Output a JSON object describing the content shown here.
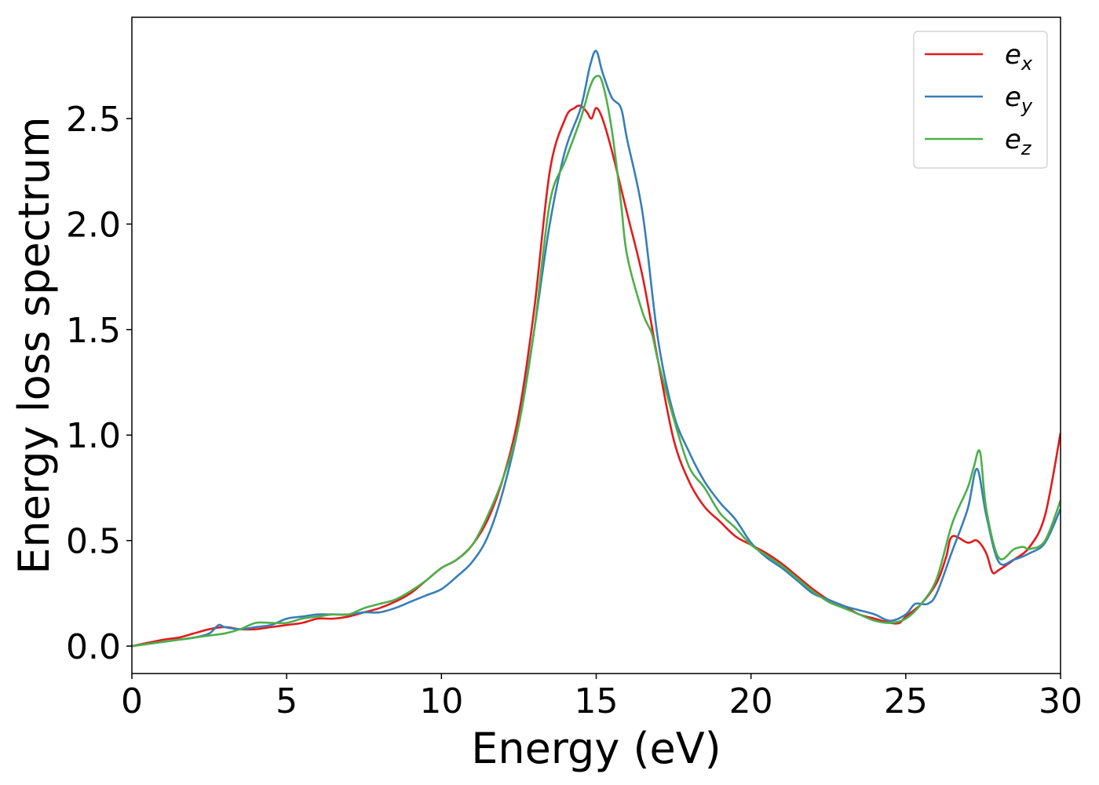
{
  "chart_data": {
    "type": "line",
    "title": "",
    "xlabel": "Energy (eV)",
    "ylabel": "Energy loss spectrum",
    "xlim": [
      0,
      30
    ],
    "ylim": [
      -0.13,
      2.98
    ],
    "xticks": [
      0,
      5,
      10,
      15,
      20,
      25,
      30
    ],
    "xtick_labels": [
      "0",
      "5",
      "10",
      "15",
      "20",
      "25",
      "30"
    ],
    "yticks": [
      0.0,
      0.5,
      1.0,
      1.5,
      2.0,
      2.5
    ],
    "ytick_labels": [
      "0.0",
      "0.5",
      "1.0",
      "1.5",
      "2.0",
      "2.5"
    ],
    "grid": false,
    "legend_position": "top-right",
    "series": [
      {
        "name": "e_x",
        "legend_base": "e",
        "legend_sub": "x",
        "color": "#e41a1c",
        "x": [
          0,
          1,
          1.5,
          2,
          2.5,
          3,
          3.5,
          4,
          4.5,
          5,
          5.5,
          6,
          6.5,
          7,
          7.5,
          8,
          8.5,
          9,
          9.5,
          10,
          10.5,
          11,
          11.5,
          12,
          12.5,
          13,
          13.5,
          14,
          14.3,
          14.5,
          14.7,
          14.85,
          15,
          15.2,
          15.5,
          16,
          16.5,
          17,
          17.5,
          18,
          18.5,
          19,
          19.5,
          20,
          20.5,
          21,
          21.5,
          22,
          22.5,
          23,
          23.5,
          24,
          24.5,
          24.8,
          25,
          25.5,
          26,
          26.3,
          26.5,
          27,
          27.3,
          27.6,
          27.8,
          28,
          28.5,
          29,
          29.5,
          30
        ],
        "y": [
          0.0,
          0.03,
          0.04,
          0.06,
          0.08,
          0.09,
          0.08,
          0.08,
          0.09,
          0.1,
          0.11,
          0.13,
          0.13,
          0.14,
          0.16,
          0.18,
          0.21,
          0.25,
          0.31,
          0.37,
          0.41,
          0.48,
          0.6,
          0.8,
          1.1,
          1.6,
          2.25,
          2.5,
          2.55,
          2.56,
          2.53,
          2.5,
          2.55,
          2.5,
          2.35,
          2.05,
          1.75,
          1.35,
          0.98,
          0.78,
          0.66,
          0.59,
          0.52,
          0.48,
          0.44,
          0.39,
          0.33,
          0.27,
          0.22,
          0.19,
          0.15,
          0.13,
          0.11,
          0.11,
          0.14,
          0.2,
          0.3,
          0.42,
          0.52,
          0.49,
          0.5,
          0.44,
          0.35,
          0.36,
          0.41,
          0.47,
          0.62,
          1.01
        ]
      },
      {
        "name": "e_y",
        "legend_base": "e",
        "legend_sub": "y",
        "color": "#377eb8",
        "x": [
          0,
          1,
          1.5,
          2,
          2.5,
          2.8,
          3,
          3.5,
          4,
          4.5,
          5,
          5.5,
          6,
          6.5,
          7,
          7.5,
          8,
          8.5,
          9,
          9.5,
          10,
          10.5,
          11,
          11.5,
          12,
          12.5,
          13,
          13.5,
          14,
          14.5,
          14.8,
          15,
          15.2,
          15.5,
          15.8,
          16,
          16.5,
          17,
          17.5,
          18,
          18.5,
          19,
          19.5,
          20,
          20.5,
          21,
          21.5,
          22,
          22.5,
          23,
          23.5,
          24,
          24.5,
          25,
          25.3,
          25.7,
          26,
          26.5,
          27,
          27.3,
          27.6,
          28,
          28.5,
          29,
          29.5,
          30
        ],
        "y": [
          0.0,
          0.02,
          0.03,
          0.04,
          0.06,
          0.1,
          0.09,
          0.08,
          0.09,
          0.1,
          0.13,
          0.14,
          0.15,
          0.15,
          0.15,
          0.16,
          0.16,
          0.18,
          0.21,
          0.24,
          0.27,
          0.33,
          0.4,
          0.52,
          0.74,
          1.05,
          1.5,
          2.0,
          2.35,
          2.55,
          2.75,
          2.82,
          2.72,
          2.6,
          2.55,
          2.4,
          2.05,
          1.45,
          1.1,
          0.92,
          0.78,
          0.68,
          0.6,
          0.49,
          0.42,
          0.37,
          0.31,
          0.25,
          0.22,
          0.19,
          0.17,
          0.15,
          0.12,
          0.15,
          0.2,
          0.2,
          0.25,
          0.45,
          0.65,
          0.84,
          0.62,
          0.4,
          0.41,
          0.44,
          0.49,
          0.65
        ]
      },
      {
        "name": "e_z",
        "legend_base": "e",
        "legend_sub": "z",
        "color": "#4daf4a",
        "x": [
          0,
          1,
          1.5,
          2,
          2.5,
          3,
          3.5,
          4,
          4.5,
          5,
          5.5,
          6,
          6.5,
          7,
          7.5,
          8,
          8.5,
          9,
          9.5,
          10,
          10.5,
          11,
          11.5,
          12,
          12.5,
          13,
          13.5,
          14,
          14.5,
          14.8,
          15,
          15.2,
          15.5,
          15.8,
          16,
          16.5,
          16.8,
          17,
          17.5,
          18,
          18.5,
          19,
          19.5,
          20,
          20.5,
          21,
          21.5,
          22,
          22.5,
          23,
          23.5,
          24,
          24.5,
          25,
          25.5,
          26,
          26.5,
          27,
          27.2,
          27.4,
          27.6,
          28,
          28.5,
          28.8,
          29,
          29.5,
          30
        ],
        "y": [
          0.0,
          0.02,
          0.03,
          0.04,
          0.05,
          0.06,
          0.08,
          0.11,
          0.11,
          0.11,
          0.13,
          0.14,
          0.15,
          0.15,
          0.18,
          0.2,
          0.22,
          0.26,
          0.31,
          0.37,
          0.41,
          0.48,
          0.62,
          0.8,
          1.05,
          1.5,
          2.1,
          2.3,
          2.5,
          2.65,
          2.7,
          2.67,
          2.45,
          2.1,
          1.85,
          1.58,
          1.48,
          1.35,
          1.08,
          0.85,
          0.75,
          0.63,
          0.56,
          0.48,
          0.43,
          0.38,
          0.32,
          0.26,
          0.21,
          0.18,
          0.15,
          0.12,
          0.11,
          0.13,
          0.2,
          0.32,
          0.58,
          0.75,
          0.85,
          0.92,
          0.65,
          0.42,
          0.46,
          0.47,
          0.46,
          0.5,
          0.69
        ]
      }
    ]
  }
}
